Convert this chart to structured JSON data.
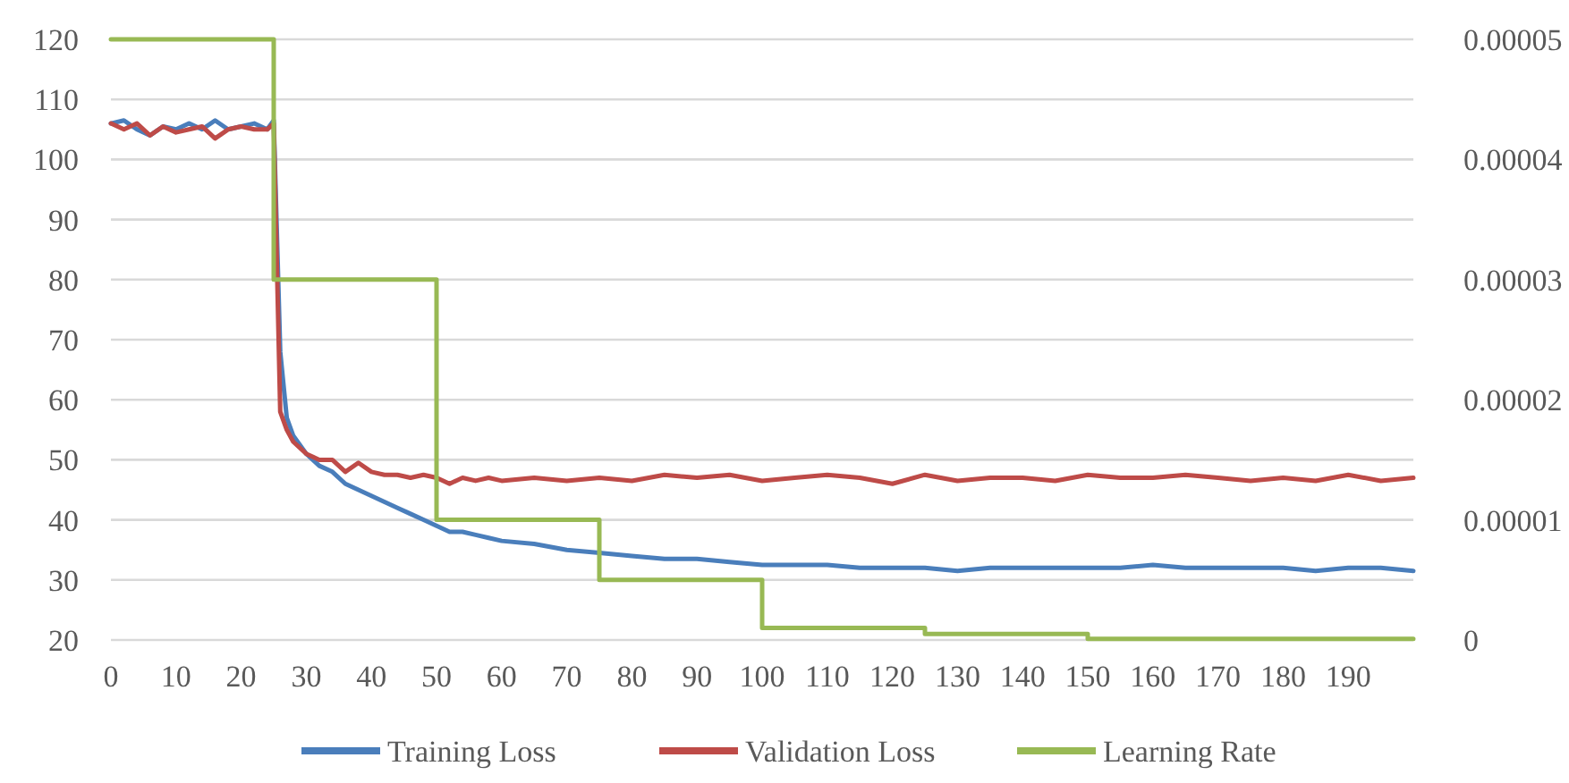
{
  "chart_data": {
    "type": "line",
    "xlim": [
      0,
      200
    ],
    "xticks": [
      0,
      10,
      20,
      30,
      40,
      50,
      60,
      70,
      80,
      90,
      100,
      110,
      120,
      130,
      140,
      150,
      160,
      170,
      180,
      190
    ],
    "ylim": [
      20,
      120
    ],
    "yticks": [
      20,
      30,
      40,
      50,
      60,
      70,
      80,
      90,
      100,
      110,
      120
    ],
    "y2lim": [
      0,
      5e-05
    ],
    "y2ticks": [
      {
        "value": 0,
        "label": "0"
      },
      {
        "value": 1e-05,
        "label": "0.00001"
      },
      {
        "value": 2e-05,
        "label": "0.00002"
      },
      {
        "value": 3e-05,
        "label": "0.00003"
      },
      {
        "value": 4e-05,
        "label": "0.00004"
      },
      {
        "value": 5e-05,
        "label": "0.00005"
      }
    ],
    "grid": "y",
    "legend": "bottom",
    "line_style": "solid",
    "marker": "none",
    "x": [
      0,
      2,
      4,
      6,
      8,
      10,
      12,
      14,
      16,
      18,
      20,
      22,
      24,
      25,
      26,
      27,
      28,
      30,
      32,
      34,
      36,
      38,
      40,
      42,
      44,
      46,
      48,
      50,
      52,
      54,
      56,
      58,
      60,
      65,
      70,
      75,
      80,
      85,
      90,
      95,
      100,
      105,
      110,
      115,
      120,
      125,
      130,
      135,
      140,
      145,
      150,
      155,
      160,
      165,
      170,
      175,
      180,
      185,
      190,
      195,
      200
    ],
    "series": [
      {
        "name": "Training Loss",
        "color": "#4a7ebb",
        "values": [
          106,
          106.5,
          105,
          104,
          105.5,
          105,
          106,
          105,
          106.5,
          105,
          105.5,
          106,
          105,
          106.5,
          68,
          57,
          54,
          51,
          49,
          48,
          46,
          45,
          44,
          43,
          42,
          41,
          40,
          39,
          38,
          38,
          37.5,
          37,
          36.5,
          36,
          35,
          34.5,
          34,
          33.5,
          33.5,
          33,
          32.5,
          32.5,
          32.5,
          32,
          32,
          32,
          31.5,
          32,
          32,
          32,
          32,
          32,
          32.5,
          32,
          32,
          32,
          32,
          31.5,
          32,
          32,
          31.5
        ]
      },
      {
        "name": "Validation Loss",
        "color": "#be4b48",
        "values": [
          106,
          105,
          106,
          104,
          105.5,
          104.5,
          105,
          105.5,
          103.5,
          105,
          105.5,
          105,
          105,
          106,
          58,
          55,
          53,
          51,
          50,
          50,
          48,
          49.5,
          48,
          47.5,
          47.5,
          47,
          47.5,
          47,
          46,
          47,
          46.5,
          47,
          46.5,
          47,
          46.5,
          47,
          46.5,
          47.5,
          47,
          47.5,
          46.5,
          47,
          47.5,
          47,
          46,
          47.5,
          46.5,
          47,
          47,
          46.5,
          47.5,
          47,
          47,
          47.5,
          47,
          46.5,
          47,
          46.5,
          47.5,
          46.5,
          47
        ]
      },
      {
        "name": "Learning Rate",
        "color": "#98b954",
        "type": "step",
        "axis": "y2",
        "x": [
          0,
          25,
          50,
          75,
          100,
          125,
          150,
          200
        ],
        "values": [
          5e-05,
          3e-05,
          1e-05,
          5e-06,
          1e-06,
          5e-07,
          1e-07,
          1e-07
        ]
      }
    ]
  }
}
